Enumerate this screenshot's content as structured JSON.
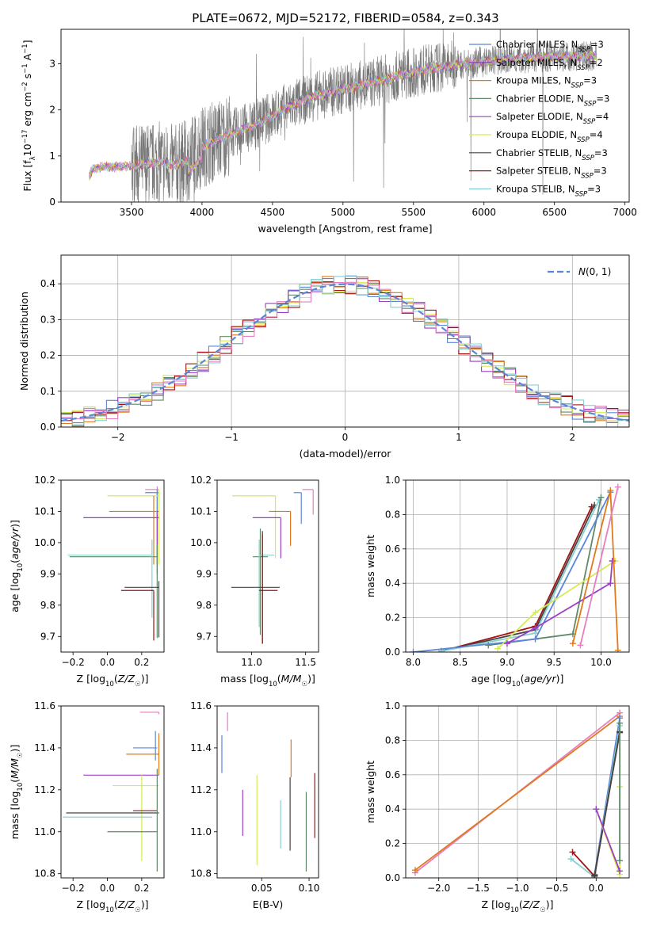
{
  "figure": {
    "title": "PLATE=0672, MJD=52172, FIBERID=0584, z=0.343"
  },
  "colors": {
    "Chabrier MILES": "#5b86d8",
    "Salpeter MILES": "#7e3ea8",
    "Kroupa MILES": "#e07a1a",
    "Chabrier ELODIE": "#5f8a67",
    "Salpeter ELODIE": "#9b3fc4",
    "Kroupa ELODIE": "#d6ea55",
    "Chabrier STELIB": "#444444",
    "Salpeter STELIB": "#a11212",
    "Kroupa STELIB": "#86d0d2",
    "pink": "#e67ec0",
    "data": "#777777"
  },
  "chart_data": [
    {
      "id": "spectrum",
      "type": "line",
      "title": "PLATE=0672, MJD=52172, FIBERID=0584, z=0.343",
      "xlabel": "wavelength [Angstrom, rest frame]",
      "ylabel": "Flux [f_λ 10^-17 erg cm^-2 s^-1 A^-1]",
      "xlim": [
        3000,
        7030
      ],
      "ylim": [
        0,
        3.75
      ],
      "xticks": [
        3500,
        4000,
        4500,
        5000,
        5500,
        6000,
        6500,
        7000
      ],
      "yticks": [
        0,
        1,
        2,
        3
      ],
      "legend_position": "top-right",
      "legend": [
        {
          "label": "Chabrier MILES, N_SSP=3",
          "text": "Chabrier MILES, N",
          "sub": "SSP",
          "tail": "=3"
        },
        {
          "label": "Salpeter MILES, N_SSP=2",
          "text": "Salpeter MILES, N",
          "sub": "SSP",
          "tail": "=2"
        },
        {
          "label": "Kroupa MILES, N_SSP=3",
          "text": "Kroupa MILES, N",
          "sub": "SSP",
          "tail": "=3"
        },
        {
          "label": "Chabrier ELODIE, N_SSP=3",
          "text": "Chabrier ELODIE, N",
          "sub": "SSP",
          "tail": "=3"
        },
        {
          "label": "Salpeter ELODIE, N_SSP=4",
          "text": "Salpeter ELODIE, N",
          "sub": "SSP",
          "tail": "=4"
        },
        {
          "label": "Kroupa ELODIE, N_SSP=4",
          "text": "Kroupa ELODIE, N",
          "sub": "SSP",
          "tail": "=4"
        },
        {
          "label": "Chabrier STELIB, N_SSP=3",
          "text": "Chabrier STELIB, N",
          "sub": "SSP",
          "tail": "=3"
        },
        {
          "label": "Salpeter STELIB, N_SSP=3",
          "text": "Salpeter STELIB, N",
          "sub": "SSP",
          "tail": "=3"
        },
        {
          "label": "Kroupa STELIB, N_SSP=3",
          "text": "Kroupa STELIB, N",
          "sub": "SSP",
          "tail": "=3"
        }
      ],
      "continuum": [
        [
          3200,
          0.58
        ],
        [
          3230,
          0.72
        ],
        [
          3300,
          0.77
        ],
        [
          3400,
          0.76
        ],
        [
          3500,
          0.79
        ],
        [
          3600,
          0.83
        ],
        [
          3700,
          0.86
        ],
        [
          3800,
          0.8
        ],
        [
          3900,
          0.9
        ],
        [
          4000,
          1.2
        ],
        [
          4200,
          1.48
        ],
        [
          4400,
          1.7
        ],
        [
          4600,
          2.05
        ],
        [
          4800,
          2.3
        ],
        [
          5000,
          2.45
        ],
        [
          5200,
          2.58
        ],
        [
          5400,
          2.75
        ],
        [
          5600,
          2.88
        ],
        [
          5800,
          2.98
        ],
        [
          6000,
          3.05
        ],
        [
          6200,
          3.1
        ],
        [
          6400,
          3.15
        ],
        [
          6600,
          3.17
        ],
        [
          6800,
          3.17
        ]
      ]
    },
    {
      "id": "residuals",
      "type": "histogram",
      "xlabel": "(data-model)/error",
      "ylabel": "Normed distribution",
      "xlim": [
        -2.5,
        2.5
      ],
      "ylim": [
        0,
        0.48
      ],
      "xticks": [
        -2,
        -1,
        0,
        1,
        2
      ],
      "yticks": [
        0.0,
        0.1,
        0.2,
        0.3,
        0.4
      ],
      "legend": [
        {
          "label": "N(0,1)",
          "math_prefix": "N",
          "tail": "(0, 1)"
        }
      ],
      "legend_position": "top-right",
      "grid": true
    },
    {
      "id": "age-Z",
      "type": "errorbar",
      "xlabel": "Z [log10(Z/Z☉)]",
      "ylabel": "age [log10(age/yr)]",
      "xlim": [
        -0.27,
        0.33
      ],
      "ylim": [
        9.65,
        10.2
      ],
      "xticks": [
        -0.2,
        0.0,
        0.2
      ],
      "yticks": [
        9.7,
        9.8,
        9.9,
        10.0,
        10.1,
        10.2
      ],
      "points": [
        {
          "c": "pink",
          "x": 0.29,
          "y": 10.17,
          "xerr": [
            0.07,
            0.01
          ],
          "yerr": [
            0.24,
            0.01
          ]
        },
        {
          "c": "Chabrier MILES",
          "x": 0.29,
          "y": 10.16,
          "xerr": [
            0.07,
            0.01
          ],
          "yerr": [
            0.2,
            0.01
          ]
        },
        {
          "c": "Kroupa ELODIE",
          "x": 0.3,
          "y": 10.15,
          "xerr": [
            0.3,
            0.0
          ],
          "yerr": [
            0.22,
            0.02
          ]
        },
        {
          "c": "Kroupa MILES",
          "x": 0.27,
          "y": 10.1,
          "xerr": [
            0.26,
            0.03
          ],
          "yerr": [
            0.17,
            0.05
          ]
        },
        {
          "c": "Salpeter ELODIE",
          "x": 0.29,
          "y": 10.08,
          "xerr": [
            0.43,
            0.01
          ],
          "yerr": [
            0.18,
            0.02
          ]
        },
        {
          "c": "Chabrier ELODIE",
          "x": 0.29,
          "y": 9.955,
          "xerr": [
            0.51,
            0.0
          ],
          "yerr": [
            0.26,
            0.04
          ]
        },
        {
          "c": "Kroupa STELIB",
          "x": 0.26,
          "y": 9.96,
          "xerr": [
            0.49,
            0.0
          ],
          "yerr": [
            0.2,
            0.05
          ]
        },
        {
          "c": "Chabrier STELIB",
          "x": 0.3,
          "y": 9.857,
          "xerr": [
            0.2,
            0.0
          ],
          "yerr": [
            0.16,
            0.02
          ]
        },
        {
          "c": "Salpeter STELIB",
          "x": 0.27,
          "y": 9.847,
          "xerr": [
            0.19,
            0.0
          ],
          "yerr": [
            0.16,
            0.0
          ]
        }
      ]
    },
    {
      "id": "age-mass",
      "type": "errorbar",
      "xlabel": "mass [log10(M/M☉)]",
      "ylabel": "",
      "xlim": [
        10.68,
        11.62
      ],
      "ylim": [
        9.65,
        10.2
      ],
      "xticks": [
        11.0,
        11.5
      ],
      "yticks": [
        9.7,
        9.8,
        9.9,
        10.0,
        10.1,
        10.2
      ],
      "points": [
        {
          "c": "pink",
          "x": 11.57,
          "y": 10.17,
          "xerr": [
            0.1,
            0.0
          ],
          "yerr": [
            0.08,
            0.0
          ]
        },
        {
          "c": "Chabrier MILES",
          "x": 11.46,
          "y": 10.16,
          "xerr": [
            0.07,
            0.0
          ],
          "yerr": [
            0.1,
            0.0
          ]
        },
        {
          "c": "Kroupa ELODIE",
          "x": 11.22,
          "y": 10.15,
          "xerr": [
            0.4,
            0.0
          ],
          "yerr": [
            0.2,
            0.0
          ]
        },
        {
          "c": "Kroupa MILES",
          "x": 11.36,
          "y": 10.1,
          "xerr": [
            0.2,
            0.0
          ],
          "yerr": [
            0.11,
            0.0
          ]
        },
        {
          "c": "Salpeter ELODIE",
          "x": 11.27,
          "y": 10.08,
          "xerr": [
            0.26,
            0.0
          ],
          "yerr": [
            0.13,
            0.0
          ]
        },
        {
          "c": "Chabrier ELODIE",
          "x": 11.08,
          "y": 9.955,
          "xerr": [
            0.07,
            0.07
          ],
          "yerr": [
            0.25,
            0.09
          ]
        },
        {
          "c": "Kroupa STELIB",
          "x": 11.07,
          "y": 9.96,
          "xerr": [
            0.0,
            0.14
          ],
          "yerr": [
            0.23,
            0.05
          ]
        },
        {
          "c": "Chabrier STELIB",
          "x": 11.1,
          "y": 9.857,
          "xerr": [
            0.29,
            0.16
          ],
          "yerr": [
            0.18,
            0.18
          ]
        },
        {
          "c": "Salpeter STELIB",
          "x": 11.1,
          "y": 9.847,
          "xerr": [
            0.03,
            0.14
          ],
          "yerr": [
            0.17,
            0.18
          ]
        }
      ]
    },
    {
      "id": "mw-age",
      "type": "line",
      "xlabel": "age [log10(age/yr)]",
      "ylabel": "mass weight",
      "xlim": [
        7.92,
        10.3
      ],
      "ylim": [
        0,
        1.0
      ],
      "xticks": [
        8.0,
        8.5,
        9.0,
        9.5,
        10.0
      ],
      "yticks": [
        0.0,
        0.2,
        0.4,
        0.6,
        0.8,
        1.0
      ],
      "grid": true,
      "series": [
        {
          "c": "Salpeter STELIB",
          "points": [
            [
              8.3,
              0.005
            ],
            [
              9.3,
              0.15
            ],
            [
              9.9,
              0.845
            ]
          ]
        },
        {
          "c": "Chabrier STELIB",
          "points": [
            [
              8.3,
              0.005
            ],
            [
              9.3,
              0.13
            ],
            [
              9.93,
              0.855
            ]
          ]
        },
        {
          "c": "Kroupa STELIB",
          "points": [
            [
              8.3,
              0.005
            ],
            [
              9.3,
              0.11
            ],
            [
              9.98,
              0.885
            ]
          ]
        },
        {
          "c": "Chabrier ELODIE",
          "points": [
            [
              8.8,
              0.04
            ],
            [
              9.7,
              0.105
            ],
            [
              10.0,
              0.9
            ]
          ]
        },
        {
          "c": "Chabrier MILES",
          "points": [
            [
              8.0,
              0.0
            ],
            [
              9.3,
              0.075
            ],
            [
              10.1,
              0.93
            ]
          ]
        },
        {
          "c": "Kroupa ELODIE",
          "points": [
            [
              8.9,
              0.02
            ],
            [
              9.3,
              0.23
            ],
            [
              10.15,
              0.53
            ]
          ]
        },
        {
          "c": "Salpeter ELODIE",
          "points": [
            [
              9.0,
              0.05
            ],
            [
              9.3,
              0.14
            ],
            [
              10.1,
              0.4
            ],
            [
              10.12,
              0.53
            ]
          ]
        },
        {
          "c": "Kroupa MILES",
          "points": [
            [
              9.7,
              0.05
            ],
            [
              10.1,
              0.94
            ],
            [
              10.18,
              0.01
            ]
          ]
        },
        {
          "c": "pink",
          "points": [
            [
              9.78,
              0.04
            ],
            [
              10.18,
              0.96
            ]
          ]
        }
      ]
    },
    {
      "id": "mass-Z",
      "type": "errorbar",
      "xlabel": "Z [log10(Z/Z☉)]",
      "ylabel": "mass [log10(M/M☉)]",
      "xlim": [
        -0.27,
        0.33
      ],
      "ylim": [
        10.78,
        11.6
      ],
      "xticks": [
        -0.2,
        0.0,
        0.2
      ],
      "yticks": [
        10.8,
        11.0,
        11.2,
        11.4,
        11.6
      ],
      "points": [
        {
          "c": "pink",
          "x": 0.3,
          "y": 11.57,
          "xerr": [
            0.11,
            0.0
          ],
          "yerr": [
            0.01,
            0.0
          ]
        },
        {
          "c": "Chabrier MILES",
          "x": 0.28,
          "y": 11.4,
          "xerr": [
            0.13,
            0.01
          ],
          "yerr": [
            0.06,
            0.08
          ]
        },
        {
          "c": "Kroupa MILES",
          "x": 0.3,
          "y": 11.37,
          "xerr": [
            0.19,
            0.0
          ],
          "yerr": [
            0.1,
            0.1
          ]
        },
        {
          "c": "Salpeter ELODIE",
          "x": 0.3,
          "y": 11.27,
          "xerr": [
            0.44,
            0.0
          ],
          "yerr": [
            0.0,
            0.0
          ]
        },
        {
          "c": "Kroupa ELODIE",
          "x": 0.2,
          "y": 11.22,
          "xerr": [
            0.17,
            0.1
          ],
          "yerr": [
            0.36,
            0.05
          ]
        },
        {
          "c": "Salpeter STELIB",
          "x": 0.26,
          "y": 11.1,
          "xerr": [
            0.11,
            0.03
          ],
          "yerr": [
            0.0,
            0.0
          ]
        },
        {
          "c": "Chabrier STELIB",
          "x": 0.3,
          "y": 11.09,
          "xerr": [
            0.54,
            0.0
          ],
          "yerr": [
            0.0,
            0.0
          ]
        },
        {
          "c": "Kroupa STELIB",
          "x": 0.26,
          "y": 11.07,
          "xerr": [
            0.52,
            0.0
          ],
          "yerr": [
            0.0,
            0.0
          ]
        },
        {
          "c": "Chabrier ELODIE",
          "x": 0.29,
          "y": 11.0,
          "xerr": [
            0.29,
            0.0
          ],
          "yerr": [
            0.19,
            0.3
          ]
        }
      ]
    },
    {
      "id": "mass-ebv",
      "type": "errorbar",
      "xlabel": "E(B-V)",
      "ylabel": "",
      "xlim": [
        0.003,
        0.11
      ],
      "ylim": [
        10.78,
        11.6
      ],
      "xticks": [
        0.05,
        0.1
      ],
      "yticks": [
        10.8,
        11.0,
        11.2,
        11.4,
        11.6
      ],
      "points": [
        {
          "c": "Chabrier MILES",
          "x": 0.008,
          "y": 11.37,
          "xerr": [
            0,
            0
          ],
          "yerr": [
            0.09,
            0.09
          ]
        },
        {
          "c": "pink",
          "x": 0.014,
          "y": 11.48,
          "xerr": [
            0,
            0
          ],
          "yerr": [
            0.0,
            0.09
          ]
        },
        {
          "c": "Salpeter ELODIE",
          "x": 0.03,
          "y": 11.1,
          "xerr": [
            0,
            0
          ],
          "yerr": [
            0.12,
            0.1
          ]
        },
        {
          "c": "Kroupa ELODIE",
          "x": 0.045,
          "y": 11.07,
          "xerr": [
            0,
            0
          ],
          "yerr": [
            0.23,
            0.2
          ]
        },
        {
          "c": "Kroupa STELIB",
          "x": 0.07,
          "y": 11.05,
          "xerr": [
            0,
            0
          ],
          "yerr": [
            0.13,
            0.1
          ]
        },
        {
          "c": "Kroupa MILES",
          "x": 0.081,
          "y": 11.36,
          "xerr": [
            0,
            0
          ],
          "yerr": [
            0.1,
            0.08
          ]
        },
        {
          "c": "Chabrier STELIB",
          "x": 0.08,
          "y": 11.1,
          "xerr": [
            0,
            0
          ],
          "yerr": [
            0.19,
            0.16
          ]
        },
        {
          "c": "Chabrier ELODIE",
          "x": 0.097,
          "y": 11.0,
          "xerr": [
            0,
            0
          ],
          "yerr": [
            0.19,
            0.19
          ]
        },
        {
          "c": "Salpeter STELIB",
          "x": 0.106,
          "y": 11.13,
          "xerr": [
            0,
            0
          ],
          "yerr": [
            0.16,
            0.15
          ]
        }
      ]
    },
    {
      "id": "mw-Z",
      "type": "line",
      "xlabel": "Z [log10(Z/Z☉)]",
      "ylabel": "mass weight",
      "xlim": [
        -2.42,
        0.42
      ],
      "ylim": [
        0,
        1.0
      ],
      "xticks": [
        -2.0,
        -1.5,
        -1.0,
        -0.5,
        0.0
      ],
      "yticks": [
        0.0,
        0.2,
        0.4,
        0.6,
        0.8,
        1.0
      ],
      "grid": true,
      "series": [
        {
          "c": "pink",
          "points": [
            [
              -2.3,
              0.03
            ],
            [
              0.3,
              0.96
            ]
          ]
        },
        {
          "c": "Kroupa MILES",
          "points": [
            [
              -2.3,
              0.045
            ],
            [
              0.3,
              0.94
            ]
          ]
        },
        {
          "c": "Chabrier MILES",
          "points": [
            [
              -0.02,
              0.02
            ],
            [
              0.3,
              0.93
            ]
          ]
        },
        {
          "c": "Kroupa STELIB",
          "points": [
            [
              -0.32,
              0.11
            ],
            [
              -0.02,
              0.005
            ],
            [
              0.3,
              0.885
            ]
          ]
        },
        {
          "c": "Salpeter STELIB",
          "points": [
            [
              -0.3,
              0.15
            ],
            [
              -0.02,
              0.01
            ],
            [
              0.3,
              0.85
            ]
          ]
        },
        {
          "c": "Chabrier STELIB",
          "points": [
            [
              -0.02,
              0.015
            ],
            [
              0.3,
              0.845
            ]
          ]
        },
        {
          "c": "Kroupa ELODIE",
          "points": [
            [
              0.0,
              0.4
            ],
            [
              0.3,
              0.02
            ],
            [
              0.3,
              0.53
            ]
          ]
        },
        {
          "c": "Salpeter ELODIE",
          "points": [
            [
              0.0,
              0.4
            ],
            [
              0.3,
              0.04
            ]
          ]
        },
        {
          "c": "Chabrier ELODIE",
          "points": [
            [
              0.3,
              0.1
            ],
            [
              0.3,
              0.9
            ]
          ]
        }
      ]
    }
  ]
}
